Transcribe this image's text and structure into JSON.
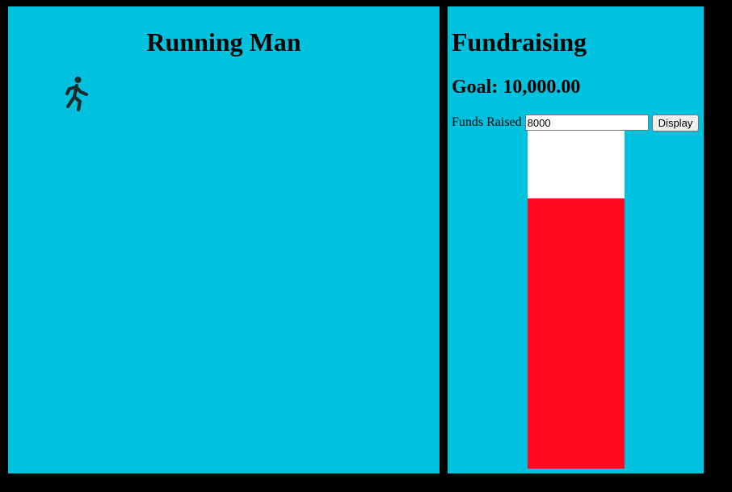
{
  "left": {
    "title": "Running Man",
    "icon": "running-man-icon"
  },
  "right": {
    "title": "Fundraising",
    "goal_label": "Goal:",
    "goal_value": "10,000.00",
    "funds_label": "Funds Raised",
    "funds_value": "8000",
    "display_label": "Display",
    "progress_fraction": 0.8
  },
  "colors": {
    "panel": "#00c2df",
    "fill": "#ff0a20",
    "background": "#000000"
  }
}
